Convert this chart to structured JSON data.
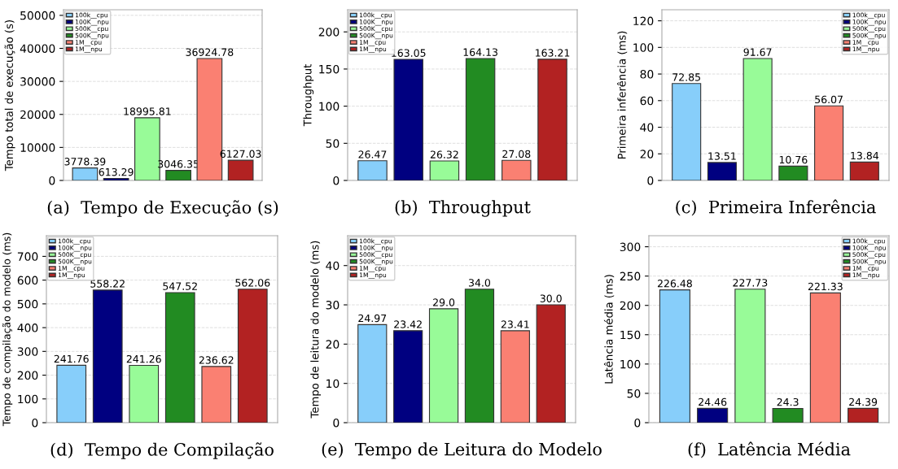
{
  "chart_data": [
    {
      "type": "bar",
      "xlabel": "(a)  Tempo de Execução (s)",
      "ylabel": "Tempo total de execução (s)",
      "categories": [
        null,
        null,
        null,
        null,
        null,
        null
      ],
      "ylim": [
        0,
        51694.7
      ],
      "yticks": [
        0,
        10000,
        20000,
        30000,
        40000,
        50000
      ],
      "grid": "y",
      "legend": "top left",
      "data_labels": true,
      "series": [
        {
          "name": "100k__cpu",
          "color": "#87cefa",
          "values": [
            3778.39,
            null,
            null,
            null,
            null,
            null
          ]
        },
        {
          "name": "100K__npu",
          "color": "#000080",
          "values": [
            null,
            613.29,
            null,
            null,
            null,
            null
          ]
        },
        {
          "name": "500K__cpu",
          "color": "#98fb98",
          "values": [
            null,
            null,
            18995.81,
            null,
            null,
            null
          ]
        },
        {
          "name": "500K__npu",
          "color": "#228b22",
          "values": [
            null,
            null,
            null,
            3046.35,
            null,
            null
          ]
        },
        {
          "name": "1M__cpu",
          "color": "#fa8072",
          "values": [
            null,
            null,
            null,
            null,
            36924.78,
            null
          ]
        },
        {
          "name": "1M__npu",
          "color": "#b22222",
          "values": [
            null,
            null,
            null,
            null,
            null,
            6127.03
          ]
        }
      ]
    },
    {
      "type": "bar",
      "xlabel": "(b)  Throughput",
      "ylabel": "Throughput",
      "categories": [
        null,
        null,
        null,
        null,
        null,
        null
      ],
      "ylim": [
        0,
        229.8
      ],
      "yticks": [
        0,
        50,
        100,
        150,
        200
      ],
      "grid": "y",
      "legend": "top left",
      "data_labels": true,
      "series": [
        {
          "name": "100k__cpu",
          "color": "#87cefa",
          "values": [
            26.47,
            null,
            null,
            null,
            null,
            null
          ]
        },
        {
          "name": "100K__npu",
          "color": "#000080",
          "values": [
            null,
            163.05,
            null,
            null,
            null,
            null
          ]
        },
        {
          "name": "500K__cpu",
          "color": "#98fb98",
          "values": [
            null,
            null,
            26.32,
            null,
            null,
            null
          ]
        },
        {
          "name": "500K__npu",
          "color": "#228b22",
          "values": [
            null,
            null,
            null,
            164.13,
            null,
            null
          ]
        },
        {
          "name": "1M__cpu",
          "color": "#fa8072",
          "values": [
            null,
            null,
            null,
            null,
            27.08,
            null
          ]
        },
        {
          "name": "1M__npu",
          "color": "#b22222",
          "values": [
            null,
            null,
            null,
            null,
            null,
            163.21
          ]
        }
      ]
    },
    {
      "type": "bar",
      "xlabel": "(c)  Primeira Inferência",
      "ylabel": "Primeira inferência (ms)",
      "categories": [
        null,
        null,
        null,
        null,
        null,
        null
      ],
      "ylim": [
        0,
        128.3
      ],
      "yticks": [
        0,
        20,
        40,
        60,
        80,
        100,
        120
      ],
      "grid": "y",
      "legend": "top right",
      "data_labels": true,
      "series": [
        {
          "name": "100k__cpu",
          "color": "#87cefa",
          "values": [
            72.85,
            null,
            null,
            null,
            null,
            null
          ]
        },
        {
          "name": "100K__npu",
          "color": "#000080",
          "values": [
            null,
            13.51,
            null,
            null,
            null,
            null
          ]
        },
        {
          "name": "500K__cpu",
          "color": "#98fb98",
          "values": [
            null,
            null,
            91.67,
            null,
            null,
            null
          ]
        },
        {
          "name": "500K__npu",
          "color": "#228b22",
          "values": [
            null,
            null,
            null,
            10.76,
            null,
            null
          ]
        },
        {
          "name": "1M__cpu",
          "color": "#fa8072",
          "values": [
            null,
            null,
            null,
            null,
            56.07,
            null
          ]
        },
        {
          "name": "1M__npu",
          "color": "#b22222",
          "values": [
            null,
            null,
            null,
            null,
            null,
            13.84
          ]
        }
      ]
    },
    {
      "type": "bar",
      "xlabel": "(d)  Tempo de Compilação",
      "ylabel": "Tempo de compilação do modelo (ms)",
      "categories": [
        null,
        null,
        null,
        null,
        null,
        null
      ],
      "ylim": [
        0,
        786.9
      ],
      "yticks": [
        0,
        100,
        200,
        300,
        400,
        500,
        600,
        700
      ],
      "grid": "y",
      "legend": "top left",
      "data_labels": true,
      "series": [
        {
          "name": "100k__cpu",
          "color": "#87cefa",
          "values": [
            241.76,
            null,
            null,
            null,
            null,
            null
          ]
        },
        {
          "name": "100K__npu",
          "color": "#000080",
          "values": [
            null,
            558.22,
            null,
            null,
            null,
            null
          ]
        },
        {
          "name": "500K__cpu",
          "color": "#98fb98",
          "values": [
            null,
            null,
            241.26,
            null,
            null,
            null
          ]
        },
        {
          "name": "500K__npu",
          "color": "#228b22",
          "values": [
            null,
            null,
            null,
            547.52,
            null,
            null
          ]
        },
        {
          "name": "1M__cpu",
          "color": "#fa8072",
          "values": [
            null,
            null,
            null,
            null,
            236.62,
            null
          ]
        },
        {
          "name": "1M__npu",
          "color": "#b22222",
          "values": [
            null,
            null,
            null,
            null,
            null,
            562.06
          ]
        }
      ]
    },
    {
      "type": "bar",
      "xlabel": "(e)  Tempo de Leitura do Modelo",
      "ylabel": "Tempo de leitura do modelo (ms)",
      "categories": [
        null,
        null,
        null,
        null,
        null,
        null
      ],
      "ylim": [
        0,
        47.6
      ],
      "yticks": [
        0,
        10,
        20,
        30,
        40
      ],
      "grid": "y",
      "legend": "top left",
      "series": [
        {
          "name": "100k__cpu",
          "color": "#87cefa",
          "values": [
            24.97,
            null,
            null,
            null,
            null,
            null
          ],
          "value_labels": [
            "24.97",
            null,
            null,
            null,
            null,
            null
          ]
        },
        {
          "name": "100K__npu",
          "color": "#000080",
          "values": [
            null,
            23.42,
            null,
            null,
            null,
            null
          ],
          "value_labels": [
            null,
            "23.42",
            null,
            null,
            null,
            null
          ]
        },
        {
          "name": "500K__cpu",
          "color": "#98fb98",
          "values": [
            null,
            null,
            29,
            null,
            null,
            null
          ],
          "value_labels": [
            null,
            null,
            "29.0",
            null,
            null,
            null
          ]
        },
        {
          "name": "500K__npu",
          "color": "#228b22",
          "values": [
            null,
            null,
            null,
            34,
            null,
            null
          ],
          "value_labels": [
            null,
            null,
            null,
            "34.0",
            null,
            null
          ]
        },
        {
          "name": "1M__cpu",
          "color": "#fa8072",
          "values": [
            null,
            null,
            null,
            null,
            23.41,
            null
          ],
          "value_labels": [
            null,
            null,
            null,
            null,
            "23.41",
            null
          ]
        },
        {
          "name": "1M__npu",
          "color": "#b22222",
          "values": [
            null,
            null,
            null,
            null,
            null,
            30
          ],
          "value_labels": [
            null,
            null,
            null,
            null,
            null,
            "30.0"
          ]
        }
      ]
    },
    {
      "type": "bar",
      "xlabel": "(f)  Latência Média",
      "ylabel": "Latência média (ms)",
      "categories": [
        null,
        null,
        null,
        null,
        null,
        null
      ],
      "ylim": [
        0,
        318.8
      ],
      "yticks": [
        0,
        50,
        100,
        150,
        200,
        250,
        300
      ],
      "grid": "y",
      "legend": "top right",
      "data_labels": true,
      "series": [
        {
          "name": "100k__cpu",
          "color": "#87cefa",
          "values": [
            226.48,
            null,
            null,
            null,
            null,
            null
          ]
        },
        {
          "name": "100K__npu",
          "color": "#000080",
          "values": [
            null,
            24.46,
            null,
            null,
            null,
            null
          ]
        },
        {
          "name": "500K__cpu",
          "color": "#98fb98",
          "values": [
            null,
            null,
            227.73,
            null,
            null,
            null
          ]
        },
        {
          "name": "500K__npu",
          "color": "#228b22",
          "values": [
            null,
            null,
            null,
            24.3,
            null,
            null
          ]
        },
        {
          "name": "1M__cpu",
          "color": "#fa8072",
          "values": [
            null,
            null,
            null,
            null,
            221.33,
            null
          ]
        },
        {
          "name": "1M__npu",
          "color": "#b22222",
          "values": [
            null,
            null,
            null,
            null,
            null,
            24.39
          ]
        }
      ]
    }
  ]
}
